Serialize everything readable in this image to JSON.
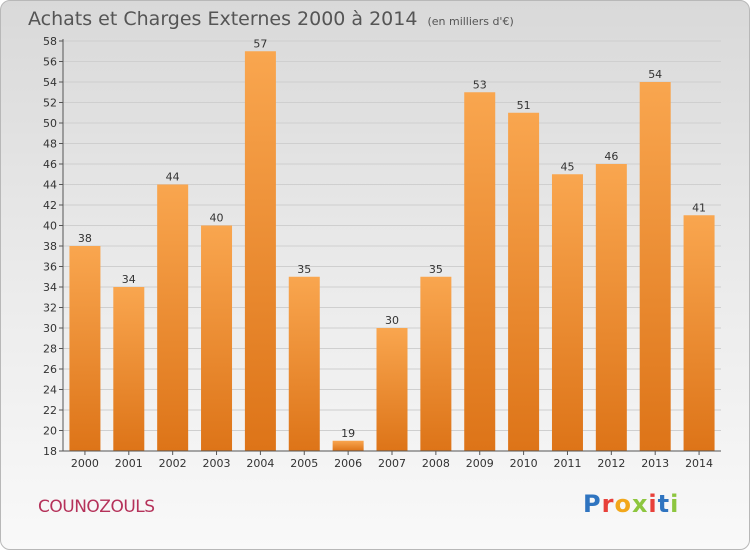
{
  "header": {
    "title": "Achats et Charges Externes 2000 à 2014",
    "unit": "(en milliers d'€)"
  },
  "footer": {
    "commune": "COUNOZOULS",
    "logo": "Proxiti",
    "logo_colors": [
      "#2f74c0",
      "#e8403a",
      "#f2a71b",
      "#8dc63f",
      "#e8403a",
      "#2f74c0",
      "#8dc63f"
    ]
  },
  "colors": {
    "bar_light": "#f9a64f",
    "bar_dark": "#dd7418",
    "commune_text": "#b5325a"
  },
  "chart_data": {
    "type": "bar",
    "title": "Achats et Charges Externes 2000 à 2014",
    "categories": [
      "2000",
      "2001",
      "2002",
      "2003",
      "2004",
      "2005",
      "2006",
      "2007",
      "2008",
      "2009",
      "2010",
      "2011",
      "2012",
      "2013",
      "2014"
    ],
    "values": [
      38,
      34,
      44,
      40,
      57,
      35,
      19,
      30,
      35,
      53,
      51,
      45,
      46,
      54,
      41
    ],
    "ylim": [
      18,
      58
    ],
    "yticks": [
      18,
      20,
      22,
      24,
      26,
      28,
      30,
      32,
      34,
      36,
      38,
      40,
      42,
      44,
      46,
      48,
      50,
      52,
      54,
      56,
      58
    ],
    "grid": true,
    "legend": "none"
  }
}
